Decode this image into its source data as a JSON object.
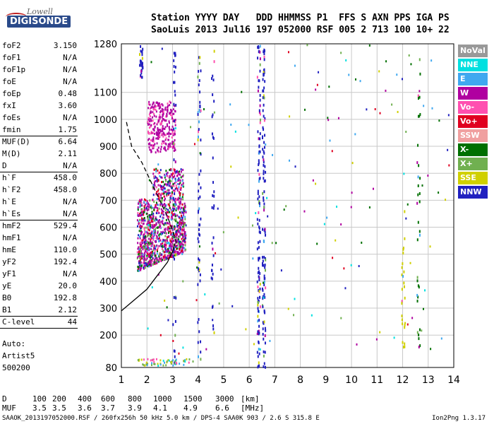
{
  "logo": {
    "lowell": "Lowell",
    "digisonde": "DIGISONDE"
  },
  "header": {
    "line1": "Station YYYY DAY   DDD HHMMSS P1  FFS S AXN PPS IGA PS",
    "line2": "SaoLuis 2013 Jul16 197 052000 RSF 005 2 713 100 10+ 22"
  },
  "params": [
    {
      "name": "foF2",
      "value": "3.150"
    },
    {
      "name": "foF1",
      "value": "N/A"
    },
    {
      "name": "foF1p",
      "value": "N/A"
    },
    {
      "name": "foE",
      "value": "N/A"
    },
    {
      "name": "foEp",
      "value": "0.48"
    },
    {
      "name": "fxI",
      "value": "3.60"
    },
    {
      "name": "foEs",
      "value": "N/A"
    },
    {
      "name": "fmin",
      "value": "1.75"
    },
    {
      "name": "MUF(D)",
      "value": "6.64"
    },
    {
      "name": "M(D)",
      "value": "2.11"
    },
    {
      "name": "D",
      "value": "N/A"
    },
    {
      "name": "h`F",
      "value": "458.0"
    },
    {
      "name": "h`F2",
      "value": "458.0"
    },
    {
      "name": "h`E",
      "value": "N/A"
    },
    {
      "name": "h`Es",
      "value": "N/A"
    },
    {
      "name": "hmF2",
      "value": "529.4"
    },
    {
      "name": "hmF1",
      "value": "N/A"
    },
    {
      "name": "hmE",
      "value": "110.0"
    },
    {
      "name": "yF2",
      "value": "192.4"
    },
    {
      "name": "yF1",
      "value": "N/A"
    },
    {
      "name": "yE",
      "value": "20.0"
    },
    {
      "name": "B0",
      "value": "192.8"
    },
    {
      "name": "B1",
      "value": "2.12"
    },
    {
      "name": "C-level",
      "value": "44"
    }
  ],
  "auto": {
    "line1": "Auto:",
    "line2": "Artist5",
    "line3": "500200"
  },
  "mufTable": {
    "dLabel": "D",
    "mufLabel": "MUF",
    "dValues": [
      "100",
      "200",
      "400",
      "600",
      "800",
      "1000",
      "1500",
      "3000"
    ],
    "dUnit": "[km]",
    "mufValues": [
      "3.5",
      "3.5",
      "3.6",
      "3.7",
      "3.9",
      "4.1",
      "4.9",
      "6.6"
    ],
    "mufUnit": "[MHz]"
  },
  "footer": {
    "left": "SAAOK_2013197052000.RSF / 260fx256h 50 kHz 5.0 km / DPS-4 SAA0K 903 / 2.6 S 315.8 E",
    "right": "Ion2Png 1.3.17"
  },
  "legend": [
    {
      "label": "NoVal",
      "color": "#999999"
    },
    {
      "label": "NNE",
      "color": "#00e0e0"
    },
    {
      "label": "E",
      "color": "#3fa8f0"
    },
    {
      "label": "W",
      "color": "#b000a0"
    },
    {
      "label": "Vo-",
      "color": "#ff50b0"
    },
    {
      "label": "Vo+",
      "color": "#e00020"
    },
    {
      "label": "SSW",
      "color": "#f0a0a0"
    },
    {
      "label": "X-",
      "color": "#007000"
    },
    {
      "label": "X+",
      "color": "#70b050"
    },
    {
      "label": "SSE",
      "color": "#d0d000"
    },
    {
      "label": "NNW",
      "color": "#2020c0"
    }
  ],
  "chart_data": {
    "type": "scatter",
    "xlabel": "",
    "ylabel": "",
    "xlim": [
      1,
      14
    ],
    "ylim": [
      80,
      1280
    ],
    "xticks": [
      1,
      2,
      3,
      4,
      5,
      6,
      7,
      8,
      9,
      10,
      11,
      12,
      13,
      14
    ],
    "yticks": [
      80,
      200,
      300,
      400,
      500,
      600,
      700,
      800,
      900,
      1000,
      1100,
      1280
    ],
    "grid": true,
    "legend_position": "right",
    "traces": [
      {
        "name": "",
        "style": "solid",
        "points": [
          [
            1,
            290
          ],
          [
            1.5,
            330
          ],
          [
            2,
            370
          ],
          [
            2.4,
            420
          ],
          [
            2.8,
            470
          ],
          [
            3.0,
            510
          ],
          [
            3.1,
            540
          ]
        ]
      },
      {
        "name": "",
        "style": "dashed",
        "points": [
          [
            1.2,
            990
          ],
          [
            1.4,
            900
          ],
          [
            1.8,
            840
          ],
          [
            2.2,
            760
          ],
          [
            2.5,
            700
          ],
          [
            2.8,
            640
          ],
          [
            3.0,
            590
          ],
          [
            3.15,
            540
          ]
        ]
      }
    ],
    "echo_clusters": [
      {
        "direction": "W",
        "x": [
          1.6,
          3.5
        ],
        "y": [
          440,
          820
        ]
      },
      {
        "direction": "W",
        "x": [
          2.0,
          3.1
        ],
        "y": [
          880,
          1070
        ]
      },
      {
        "direction": "NNW",
        "x": [
          1.7,
          1.9
        ],
        "y": [
          1180,
          1280
        ]
      },
      {
        "direction": "NNW",
        "x": [
          6.3,
          6.6
        ],
        "y": [
          80,
          1280
        ]
      }
    ]
  }
}
